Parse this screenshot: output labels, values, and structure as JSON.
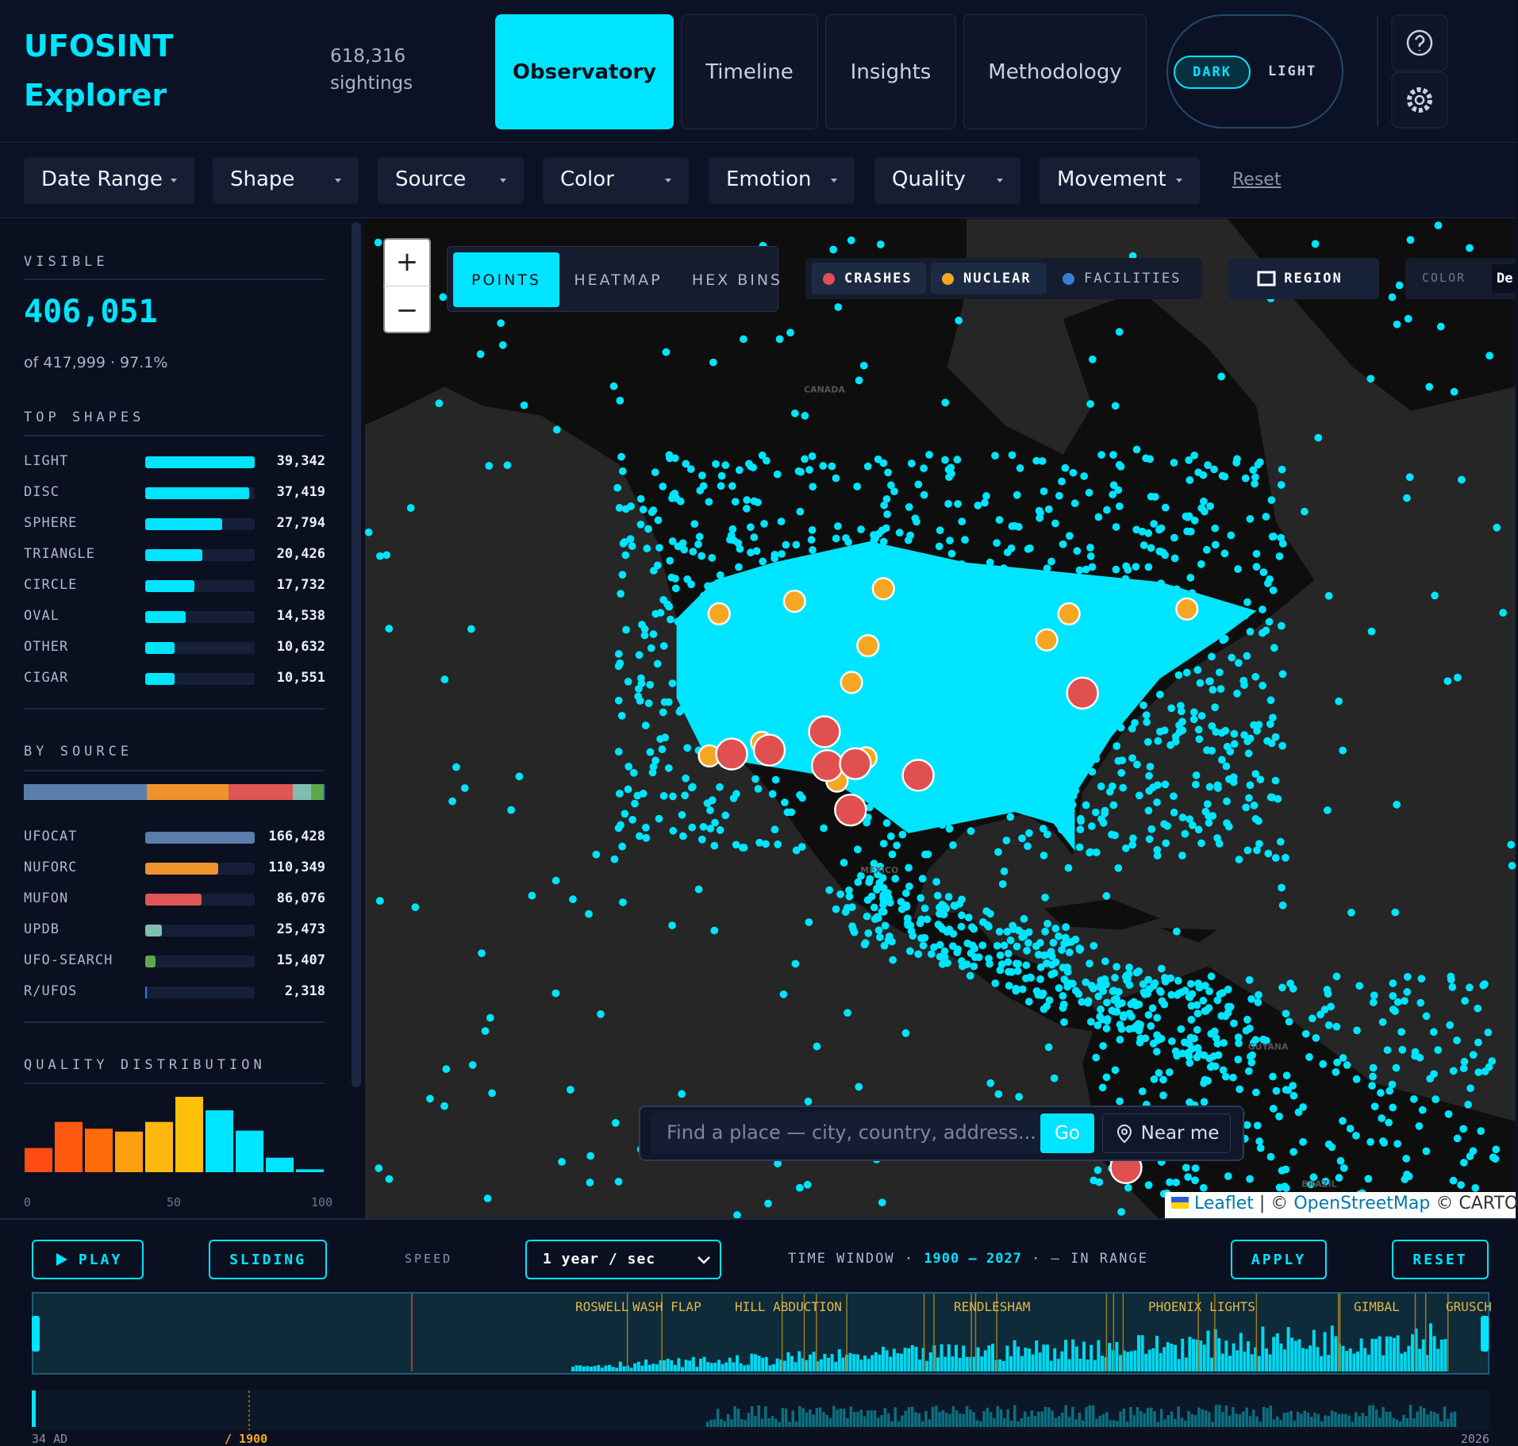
{
  "header": {
    "brand": [
      "UFOSINT",
      "Explorer"
    ],
    "total_count": "618,316",
    "total_label": "sightings",
    "tabs": [
      "Observatory",
      "Timeline",
      "Insights",
      "Methodology"
    ],
    "theme": [
      "DARK",
      "LIGHT"
    ]
  },
  "filters": {
    "buttons": [
      "Date Range",
      "Shape",
      "Source",
      "Color",
      "Emotion",
      "Quality",
      "Movement"
    ],
    "reset": "Reset"
  },
  "sidebar": {
    "visible": {
      "title": "VISIBLE",
      "count": "406,051",
      "detail": "of 417,999 · 97.1%"
    },
    "top_shapes": {
      "title": "TOP SHAPES",
      "items": [
        {
          "label": "LIGHT",
          "value": 39342,
          "value_label": "39,342"
        },
        {
          "label": "DISC",
          "value": 37419,
          "value_label": "37,419"
        },
        {
          "label": "SPHERE",
          "value": 27794,
          "value_label": "27,794"
        },
        {
          "label": "TRIANGLE",
          "value": 20426,
          "value_label": "20,426"
        },
        {
          "label": "CIRCLE",
          "value": 17732,
          "value_label": "17,732"
        },
        {
          "label": "OVAL",
          "value": 14538,
          "value_label": "14,538"
        },
        {
          "label": "OTHER",
          "value": 10632,
          "value_label": "10,632"
        },
        {
          "label": "CIGAR",
          "value": 10551,
          "value_label": "10,551"
        }
      ]
    },
    "by_source": {
      "title": "BY SOURCE",
      "items": [
        {
          "label": "UFOCAT",
          "value": 166428,
          "value_label": "166,428",
          "color": "#5a7eab"
        },
        {
          "label": "NUFORC",
          "value": 110349,
          "value_label": "110,349",
          "color": "#f0922e"
        },
        {
          "label": "MUFON",
          "value": 86076,
          "value_label": "86,076",
          "color": "#e05555"
        },
        {
          "label": "UPDB",
          "value": 25473,
          "value_label": "25,473",
          "color": "#7fbfb0"
        },
        {
          "label": "UFO-SEARCH",
          "value": 15407,
          "value_label": "15,407",
          "color": "#5fa84a"
        },
        {
          "label": "R/UFOS",
          "value": 2318,
          "value_label": "2,318",
          "color": "#2f7fe0"
        }
      ]
    },
    "quality": {
      "title": "QUALITY DISTRIBUTION",
      "values": [
        25,
        52,
        45,
        42,
        52,
        78,
        64,
        43,
        15,
        3
      ],
      "colors": [
        "#ff4d14",
        "#ff5a10",
        "#ff6a0a",
        "#ffa010",
        "#ffb810",
        "#ffc00a",
        "#00e5ff",
        "#00e5ff",
        "#00e5ff",
        "#00e5ff"
      ],
      "axis_labels": [
        "0",
        "50",
        "100"
      ]
    }
  },
  "map": {
    "zoom": [
      "+",
      "−"
    ],
    "modes": [
      "POINTS",
      "HEATMAP",
      "HEX BINS"
    ],
    "layers": [
      {
        "label": "CRASHES",
        "color": "#e05050"
      },
      {
        "label": "NUCLEAR",
        "color": "#f5a623"
      },
      {
        "label": "FACILITIES",
        "color": "#3a7bd5"
      }
    ],
    "region": "REGION",
    "color_label": "COLOR",
    "color_value": "De",
    "place_labels": [
      "CANADA",
      "MEXICO",
      "GUYANA",
      "BRAZIL"
    ],
    "search": {
      "placeholder": "Find a place — city, country, address...",
      "go": "Go",
      "near": "Near me"
    },
    "attribution": {
      "leaflet": "Leaflet",
      "sep": "| ©",
      "osm": "OpenStreetMap",
      "carto": "© CARTO"
    }
  },
  "timeline": {
    "play": "PLAY",
    "mode": "SLIDING",
    "speed_label": "SPEED",
    "speed": "1 year / sec",
    "window_label": "TIME WINDOW ·",
    "window": "1900 — 2027",
    "in_range": "· — IN RANGE",
    "apply": "APPLY",
    "reset": "RESET",
    "events": [
      "ROSWELL",
      "WASH FLAP",
      "HILL ABDUCTION",
      "RENDLESHAM",
      "PHOENIX LIGHTS",
      "GIMBAL",
      "GRUSCH"
    ],
    "axis": [
      "34 AD",
      "/ 1900",
      "2026"
    ]
  }
}
